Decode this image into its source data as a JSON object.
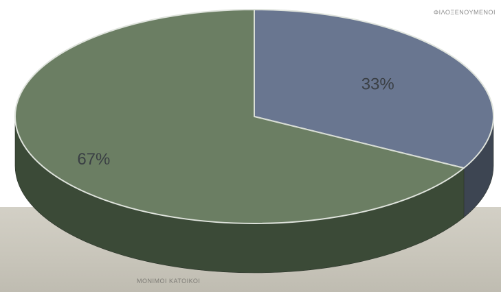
{
  "chart_data": {
    "type": "pie",
    "style": "3d",
    "slices": [
      {
        "label": "ΦΙΛΟΞΕΝΟΥΜΕΝΟΙ",
        "value": 33,
        "value_label": "33%",
        "color": "#697690",
        "side_color": "#3d4552"
      },
      {
        "label": "ΜΟΝΙΜΟΙ ΚΑΤΟΙΚΟΙ",
        "value": 67,
        "value_label": "67%",
        "color": "#6b7e63",
        "side_color": "#3b4a37"
      }
    ]
  },
  "colors": {
    "background": "#ffffff",
    "floor": "#cdcabf",
    "slice_edge": "#d9ded6",
    "label_text": "#3a3f44"
  }
}
